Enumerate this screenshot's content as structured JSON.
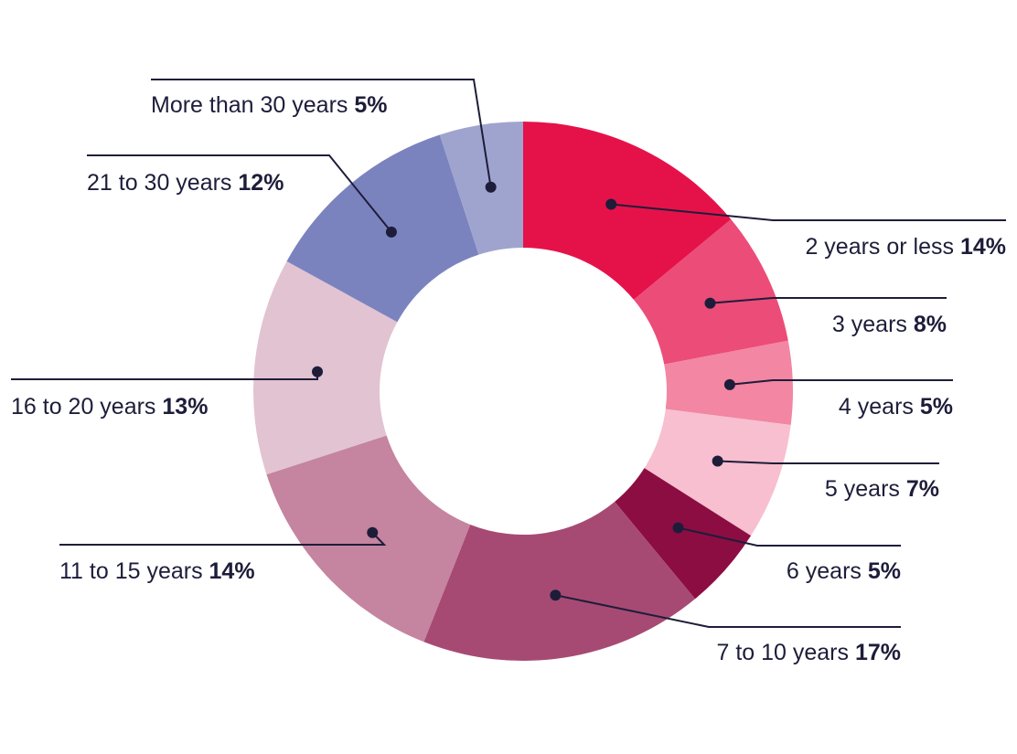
{
  "chart_data": {
    "type": "pie",
    "donut": true,
    "title": "",
    "unit": "%",
    "slices": [
      {
        "label": "2 years or less",
        "value": 14,
        "display": "14%",
        "color": "#E5124A"
      },
      {
        "label": "3 years",
        "value": 8,
        "display": "8%",
        "color": "#EC4C78"
      },
      {
        "label": "4 years",
        "value": 5,
        "display": "5%",
        "color": "#F286A3"
      },
      {
        "label": "5 years",
        "value": 7,
        "display": "7%",
        "color": "#F7BFCF"
      },
      {
        "label": "6 years",
        "value": 5,
        "display": "5%",
        "color": "#8C0D42"
      },
      {
        "label": "7 to 10 years",
        "value": 17,
        "display": "17%",
        "color": "#A74A73"
      },
      {
        "label": "11 to 15 years",
        "value": 14,
        "display": "14%",
        "color": "#C5849F"
      },
      {
        "label": "16 to 20 years",
        "value": 13,
        "display": "13%",
        "color": "#E2C3D2"
      },
      {
        "label": "21 to 30 years",
        "value": 12,
        "display": "12%",
        "color": "#7B83BE"
      },
      {
        "label": "More than 30 years",
        "value": 5,
        "display": "5%",
        "color": "#9FA4CF"
      }
    ]
  }
}
